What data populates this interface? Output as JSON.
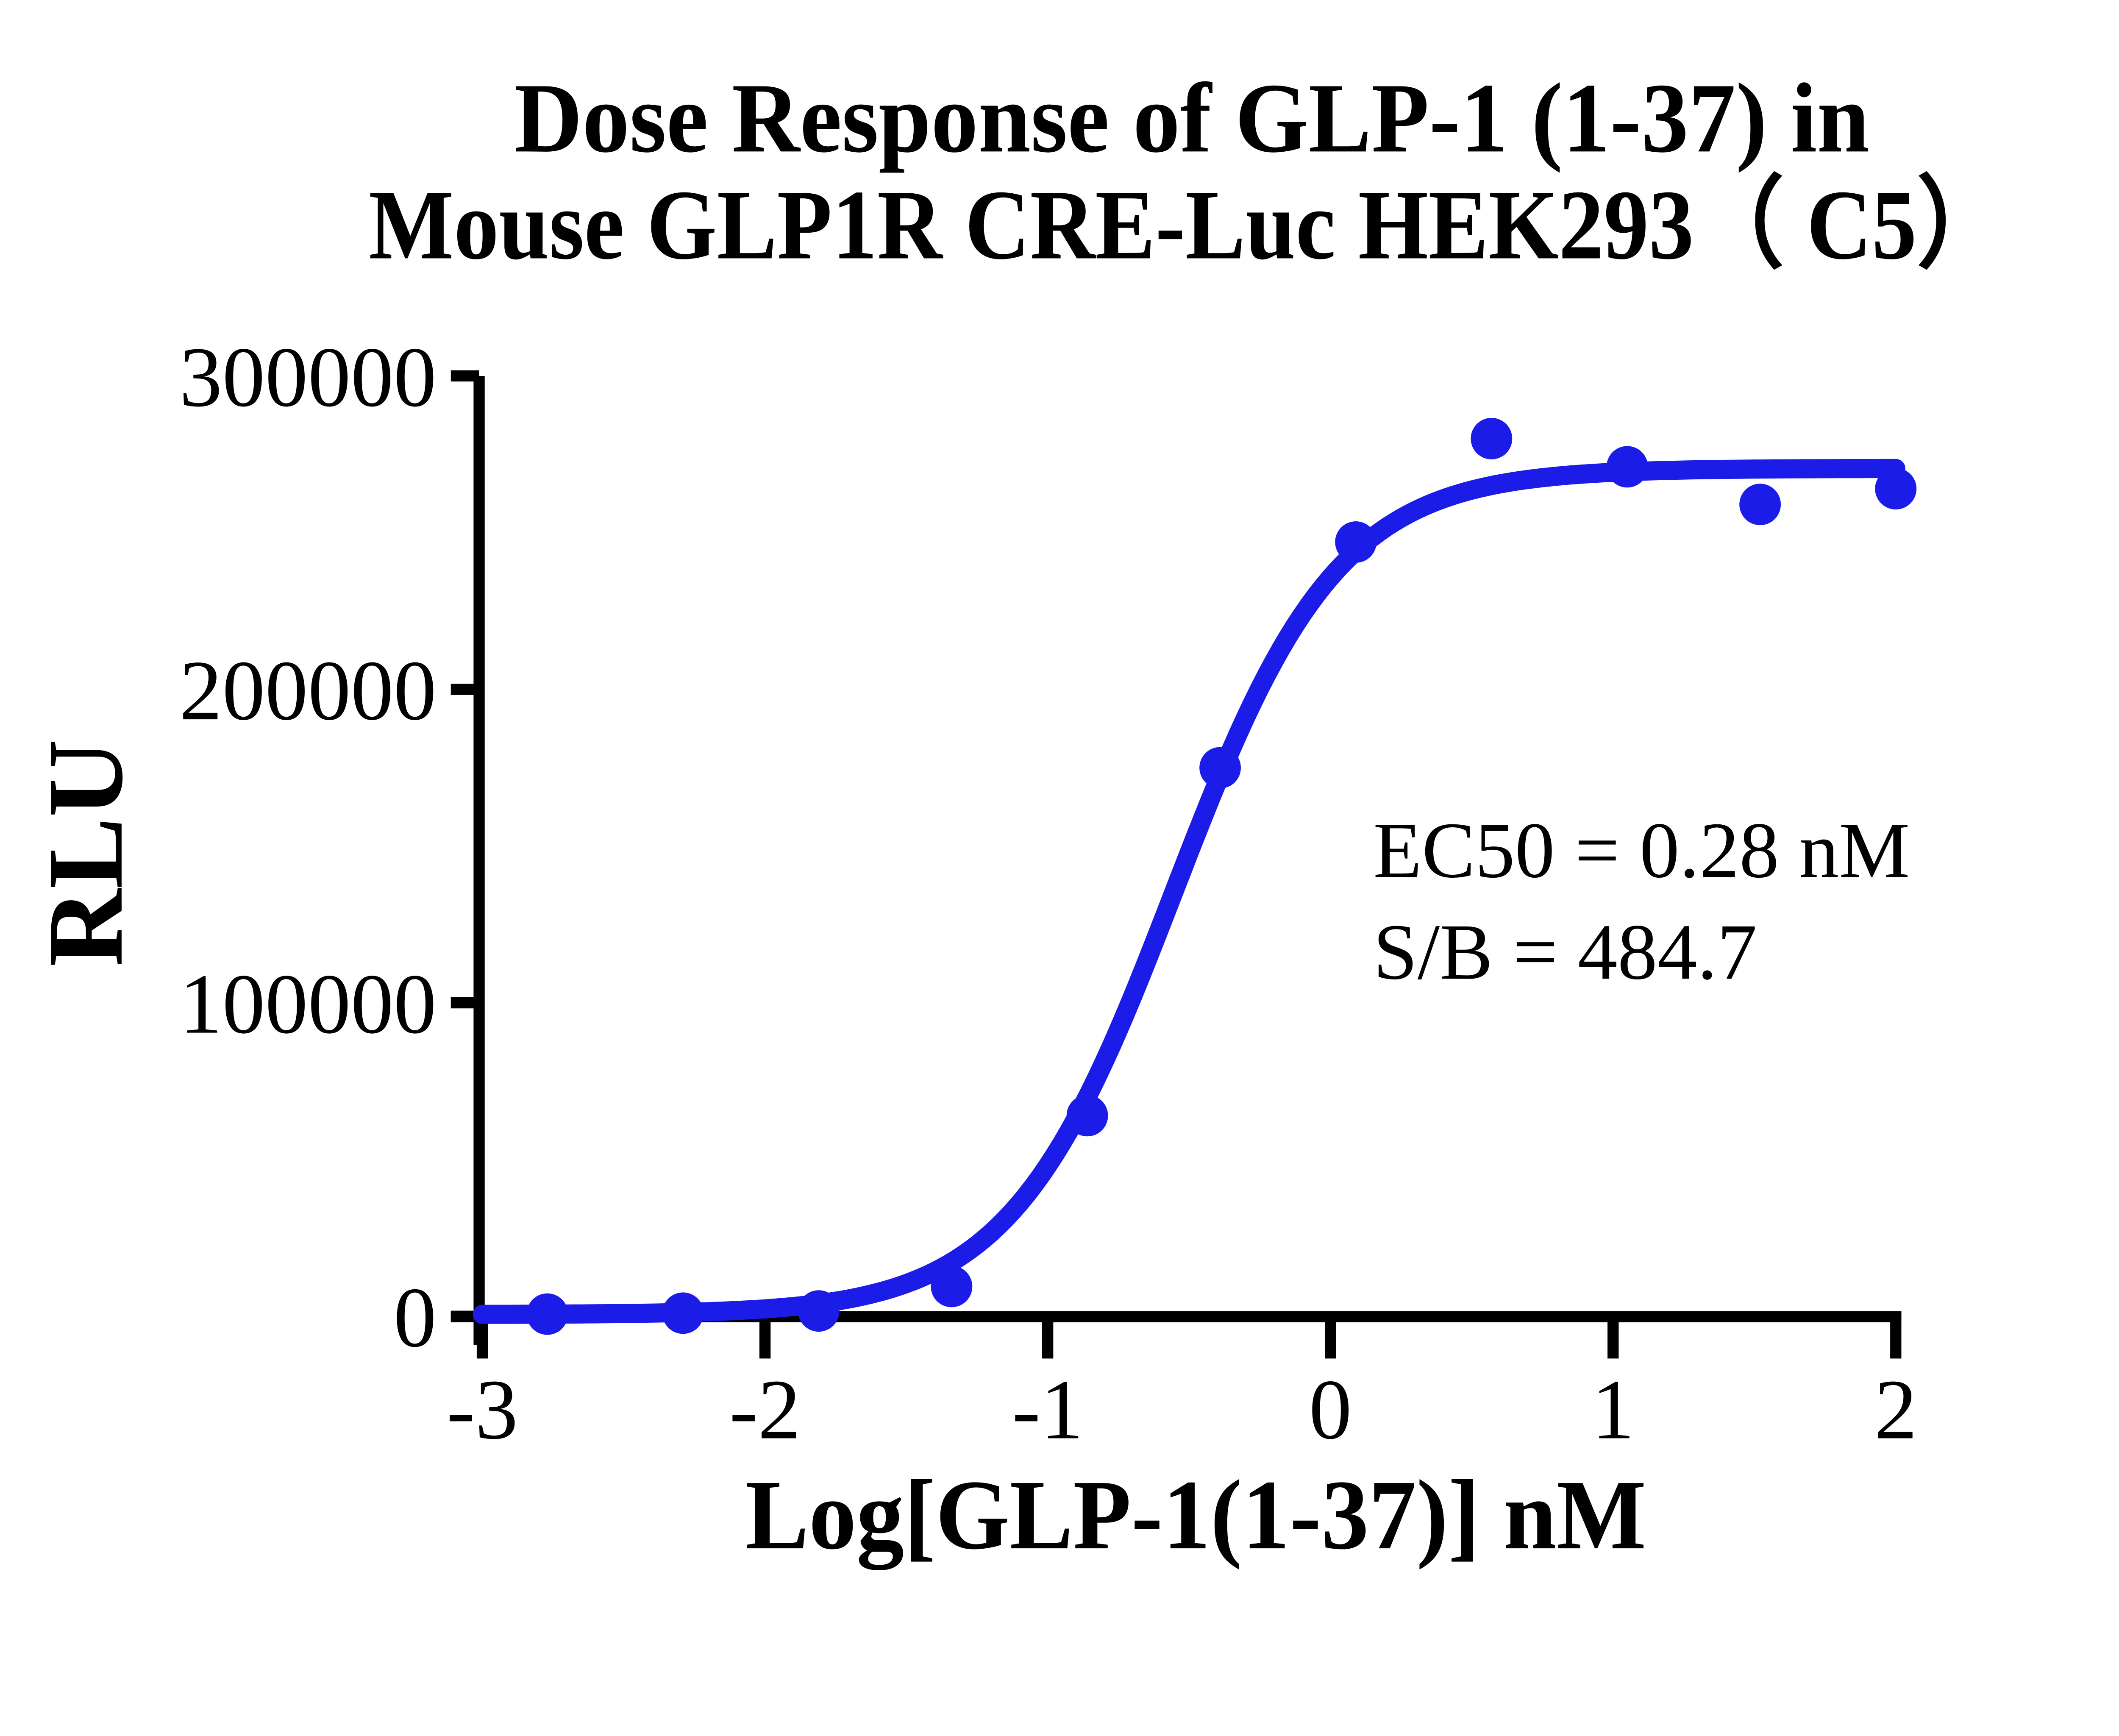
{
  "chart_data": {
    "type": "scatter",
    "title_line1": "Dose Response of GLP-1 (1-37) in",
    "title_line2": "Mouse GLP1R CRE-Luc HEK293（ C5）",
    "xlabel": "Log[GLP-1(1-37)] nM",
    "ylabel": "RLU",
    "xlim": [
      -3,
      2
    ],
    "ylim": [
      0,
      300000
    ],
    "x_ticks": [
      -3,
      -2,
      -1,
      0,
      1,
      2
    ],
    "y_ticks": [
      0,
      100000,
      200000,
      300000
    ],
    "grid": false,
    "legend": "none",
    "series": [
      {
        "name": "GLP-1 (1-37)",
        "marker": "circle",
        "color": "#1c1ce8",
        "x": [
          -2.77,
          -2.29,
          -1.81,
          -1.34,
          -0.86,
          -0.39,
          0.09,
          0.57,
          1.05,
          1.52,
          2.0
        ],
        "y": [
          700,
          1000,
          1700,
          9500,
          64000,
          175000,
          247000,
          280000,
          271000,
          259000,
          264000
        ]
      }
    ],
    "fit_curve": {
      "model": "4PL",
      "bottom": 560,
      "top": 270500,
      "hill_slope": 1.5,
      "log_ec50": -0.553
    },
    "annotations": [
      "EC50 = 0.28 nM",
      "S/B = 484.7"
    ],
    "ec50_nM": 0.28,
    "s_over_b": 484.7,
    "colors": {
      "curve": "#1c1ce8",
      "axis": "#000000",
      "text": "#000000",
      "background": "#ffffff"
    }
  }
}
